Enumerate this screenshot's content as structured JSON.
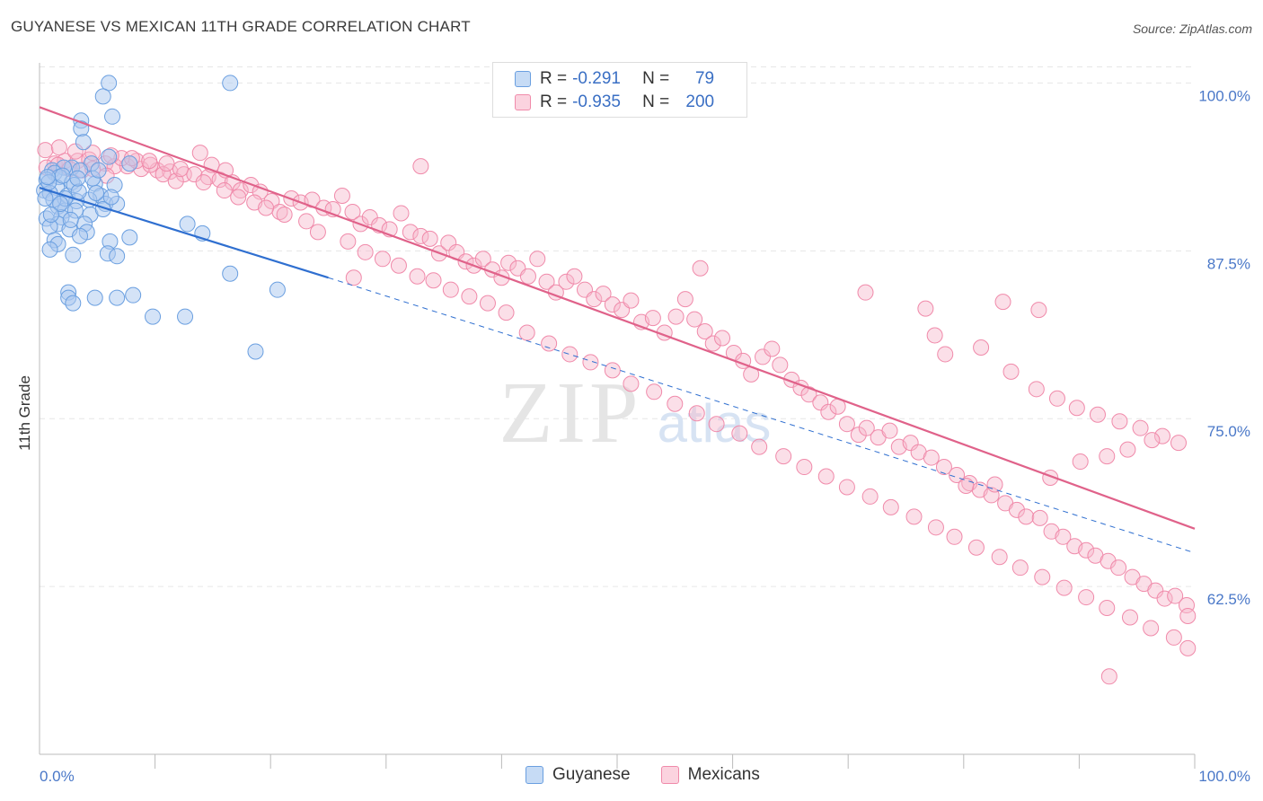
{
  "title": "GUYANESE VS MEXICAN 11TH GRADE CORRELATION CHART",
  "source": "Source: ZipAtlas.com",
  "watermark": {
    "zip": "ZIP",
    "atlas": "atlas"
  },
  "legend_top": [
    {
      "r_label": "R =",
      "r_value": "-0.291",
      "n_label": "N =",
      "n_value": "79",
      "color": "#a9c8f0"
    },
    {
      "r_label": "R =",
      "r_value": "-0.935",
      "n_label": "N =",
      "n_value": "200",
      "color": "#f7b8cb"
    }
  ],
  "legend_bottom": [
    {
      "label": "Guyanese",
      "color": "#a9c8f0"
    },
    {
      "label": "Mexicans",
      "color": "#f7b8cb"
    }
  ],
  "chart_data": {
    "type": "scatter",
    "title": "GUYANESE VS MEXICAN 11TH GRADE CORRELATION CHART",
    "xlabel": "",
    "ylabel": "11th Grade",
    "xlim": [
      0,
      100
    ],
    "ylim": [
      50,
      101.5
    ],
    "x_tick_labels": [
      "0.0%",
      "100.0%"
    ],
    "y_ticks": [
      62.5,
      75.0,
      87.5,
      100.0
    ],
    "y_tick_labels": [
      "62.5%",
      "75.0%",
      "87.5%",
      "100.0%"
    ],
    "grid": true,
    "colors": {
      "guyanese": "#6a9fe0",
      "mexicans": "#f08aaa",
      "guyanese_line": "#2f6fd0",
      "mexicans_line": "#e0628a"
    },
    "series": [
      {
        "name": "Guyanese",
        "trend": {
          "x0": 0,
          "y0": 92.2,
          "x1": 25,
          "y1": 85.5,
          "dashed_to_x": 100,
          "dashed_to_y": 65.0
        },
        "points": [
          [
            6,
            100
          ],
          [
            16.5,
            100
          ],
          [
            5.5,
            99
          ],
          [
            6.3,
            97.5
          ],
          [
            3.6,
            97.2
          ],
          [
            3.6,
            96.6
          ],
          [
            3.8,
            95.6
          ],
          [
            6,
            94.5
          ],
          [
            7.8,
            94
          ],
          [
            4.5,
            94
          ],
          [
            2.8,
            93.7
          ],
          [
            1.1,
            93.5
          ],
          [
            2.1,
            93.7
          ],
          [
            3.5,
            93.5
          ],
          [
            1.3,
            93.3
          ],
          [
            1.7,
            93
          ],
          [
            0.6,
            92.8
          ],
          [
            2.8,
            92.6
          ],
          [
            4.8,
            92.5
          ],
          [
            6.5,
            92.4
          ],
          [
            1.5,
            92.2
          ],
          [
            0.4,
            92
          ],
          [
            0.9,
            91.8
          ],
          [
            2.4,
            91.6
          ],
          [
            5.3,
            91.6
          ],
          [
            4.3,
            91.3
          ],
          [
            3.2,
            91.2
          ],
          [
            5.7,
            91
          ],
          [
            6.7,
            91
          ],
          [
            1.6,
            90.8
          ],
          [
            2.2,
            90.5
          ],
          [
            4.4,
            90.2
          ],
          [
            1.9,
            90
          ],
          [
            0.6,
            89.9
          ],
          [
            1.6,
            89.5
          ],
          [
            3.9,
            89.5
          ],
          [
            12.8,
            89.5
          ],
          [
            0.9,
            89.3
          ],
          [
            2.6,
            89.1
          ],
          [
            4.1,
            88.9
          ],
          [
            14.1,
            88.8
          ],
          [
            3.5,
            88.6
          ],
          [
            7.8,
            88.5
          ],
          [
            1.3,
            88.3
          ],
          [
            6.1,
            88.2
          ],
          [
            1.6,
            88
          ],
          [
            0.9,
            87.6
          ],
          [
            5.9,
            87.3
          ],
          [
            6.7,
            87.1
          ],
          [
            2.9,
            87.2
          ],
          [
            16.5,
            85.8
          ],
          [
            20.6,
            84.6
          ],
          [
            2.5,
            84.4
          ],
          [
            2.5,
            84
          ],
          [
            6.7,
            84
          ],
          [
            4.8,
            84
          ],
          [
            8.1,
            84.2
          ],
          [
            2.9,
            83.6
          ],
          [
            9.8,
            82.6
          ],
          [
            12.6,
            82.6
          ],
          [
            18.7,
            80
          ],
          [
            3.1,
            90.5
          ],
          [
            2.2,
            91.4
          ],
          [
            4.6,
            92.9
          ],
          [
            5.1,
            93.5
          ],
          [
            0.8,
            92.6
          ],
          [
            1.2,
            91.3
          ],
          [
            3.0,
            92.4
          ],
          [
            2.0,
            93.1
          ],
          [
            4.9,
            91.8
          ],
          [
            0.5,
            91.4
          ],
          [
            1.8,
            91.0
          ],
          [
            3.4,
            91.9
          ],
          [
            5.5,
            90.6
          ],
          [
            2.7,
            89.8
          ],
          [
            1.0,
            90.2
          ],
          [
            6.2,
            91.5
          ],
          [
            0.7,
            93.0
          ],
          [
            3.3,
            92.9
          ]
        ]
      },
      {
        "name": "Mexicans",
        "trend": {
          "x0": 0,
          "y0": 98.2,
          "x1": 100,
          "y1": 66.8
        },
        "points": [
          [
            1.3,
            94
          ],
          [
            2.2,
            94.2
          ],
          [
            3.3,
            94.2
          ],
          [
            4.3,
            94.3
          ],
          [
            5.7,
            94
          ],
          [
            6.5,
            93.8
          ],
          [
            7.6,
            93.8
          ],
          [
            8.8,
            93.6
          ],
          [
            10.2,
            93.5
          ],
          [
            11.3,
            93.4
          ],
          [
            12.5,
            93.2
          ],
          [
            13.4,
            93.2
          ],
          [
            14.6,
            93
          ],
          [
            15.6,
            92.8
          ],
          [
            16.7,
            92.6
          ],
          [
            0.6,
            93.7
          ],
          [
            1.6,
            93.9
          ],
          [
            2.6,
            93.6
          ],
          [
            3.7,
            93.5
          ],
          [
            4.6,
            93.6
          ],
          [
            5.8,
            93.1
          ],
          [
            7.1,
            94.4
          ],
          [
            8.4,
            94.2
          ],
          [
            9.6,
            93.9
          ],
          [
            10.7,
            93.2
          ],
          [
            11.8,
            92.7
          ],
          [
            13.9,
            94.8
          ],
          [
            14.9,
            93.9
          ],
          [
            16.1,
            93.5
          ],
          [
            17.4,
            92
          ],
          [
            18.3,
            92.4
          ],
          [
            19.1,
            91.9
          ],
          [
            20.1,
            91.2
          ],
          [
            20.8,
            90.4
          ],
          [
            21.8,
            91.4
          ],
          [
            22.6,
            91.1
          ],
          [
            23.6,
            91.3
          ],
          [
            24.6,
            90.7
          ],
          [
            25.4,
            90.6
          ],
          [
            26.2,
            91.6
          ],
          [
            27.1,
            90.4
          ],
          [
            27.8,
            89.5
          ],
          [
            28.6,
            90
          ],
          [
            29.4,
            89.4
          ],
          [
            30.3,
            89.1
          ],
          [
            31.3,
            90.3
          ],
          [
            32.1,
            88.9
          ],
          [
            33,
            88.6
          ],
          [
            33.8,
            88.4
          ],
          [
            34.6,
            87.3
          ],
          [
            35.4,
            88.1
          ],
          [
            36.1,
            87.4
          ],
          [
            36.9,
            86.7
          ],
          [
            37.6,
            86.4
          ],
          [
            38.4,
            86.9
          ],
          [
            39.2,
            86.1
          ],
          [
            40,
            85.5
          ],
          [
            40.6,
            86.6
          ],
          [
            41.4,
            86.2
          ],
          [
            42.3,
            85.6
          ],
          [
            43.1,
            86.9
          ],
          [
            43.9,
            85.2
          ],
          [
            44.7,
            84.4
          ],
          [
            45.6,
            85.2
          ],
          [
            46.3,
            85.6
          ],
          [
            47.2,
            84.6
          ],
          [
            48,
            83.9
          ],
          [
            48.8,
            84.3
          ],
          [
            49.6,
            83.5
          ],
          [
            50.4,
            83.1
          ],
          [
            51.2,
            83.8
          ],
          [
            52.1,
            82.2
          ],
          [
            53.1,
            82.5
          ],
          [
            54.1,
            81.4
          ],
          [
            55.1,
            82.6
          ],
          [
            55.9,
            83.9
          ],
          [
            56.7,
            82.4
          ],
          [
            57.6,
            81.5
          ],
          [
            58.3,
            80.6
          ],
          [
            59.1,
            81
          ],
          [
            60.1,
            79.9
          ],
          [
            60.9,
            79.3
          ],
          [
            61.6,
            78.3
          ],
          [
            62.6,
            79.6
          ],
          [
            63.4,
            80.2
          ],
          [
            64.1,
            79
          ],
          [
            65.1,
            77.9
          ],
          [
            65.9,
            77.3
          ],
          [
            66.6,
            76.8
          ],
          [
            67.6,
            76.2
          ],
          [
            68.3,
            75.5
          ],
          [
            69.1,
            75.9
          ],
          [
            69.9,
            74.6
          ],
          [
            70.9,
            73.8
          ],
          [
            71.6,
            74.3
          ],
          [
            72.6,
            73.6
          ],
          [
            73.6,
            74.1
          ],
          [
            74.4,
            72.9
          ],
          [
            75.4,
            73.2
          ],
          [
            76.1,
            72.5
          ],
          [
            77.2,
            72.1
          ],
          [
            78.3,
            71.4
          ],
          [
            79.4,
            70.8
          ],
          [
            80.5,
            70.2
          ],
          [
            81.4,
            69.7
          ],
          [
            82.4,
            69.3
          ],
          [
            83.6,
            68.7
          ],
          [
            84.6,
            68.2
          ],
          [
            85.4,
            67.7
          ],
          [
            86.6,
            67.6
          ],
          [
            87.6,
            66.6
          ],
          [
            88.6,
            66.2
          ],
          [
            89.6,
            65.5
          ],
          [
            90.6,
            65.2
          ],
          [
            91.4,
            64.8
          ],
          [
            92.5,
            64.4
          ],
          [
            93.4,
            63.9
          ],
          [
            94.6,
            63.2
          ],
          [
            95.6,
            62.7
          ],
          [
            96.6,
            62.2
          ],
          [
            97.4,
            61.6
          ],
          [
            98.3,
            61.8
          ],
          [
            99.3,
            61.1
          ],
          [
            0.5,
            95
          ],
          [
            1.7,
            95.2
          ],
          [
            3.1,
            94.9
          ],
          [
            4.6,
            94.8
          ],
          [
            6.2,
            94.6
          ],
          [
            8,
            94.4
          ],
          [
            9.5,
            94.2
          ],
          [
            11,
            94
          ],
          [
            12.2,
            93.6
          ],
          [
            14.2,
            92.6
          ],
          [
            16,
            92
          ],
          [
            17.2,
            91.5
          ],
          [
            18.6,
            91.1
          ],
          [
            19.6,
            90.7
          ],
          [
            21.2,
            90.2
          ],
          [
            23.1,
            89.7
          ],
          [
            24.1,
            88.9
          ],
          [
            26.7,
            88.2
          ],
          [
            28.2,
            87.4
          ],
          [
            29.7,
            86.9
          ],
          [
            31.1,
            86.4
          ],
          [
            32.7,
            85.6
          ],
          [
            34.1,
            85.3
          ],
          [
            35.6,
            84.6
          ],
          [
            37.2,
            84.1
          ],
          [
            38.8,
            83.6
          ],
          [
            40.4,
            82.9
          ],
          [
            42.2,
            81.4
          ],
          [
            44.1,
            80.6
          ],
          [
            45.9,
            79.8
          ],
          [
            47.7,
            79.2
          ],
          [
            49.6,
            78.6
          ],
          [
            51.2,
            77.6
          ],
          [
            53.2,
            77
          ],
          [
            55,
            76.1
          ],
          [
            56.9,
            75.4
          ],
          [
            58.6,
            74.6
          ],
          [
            60.6,
            73.9
          ],
          [
            62.3,
            72.9
          ],
          [
            64.4,
            72.2
          ],
          [
            66.2,
            71.4
          ],
          [
            68.1,
            70.7
          ],
          [
            69.9,
            69.9
          ],
          [
            71.9,
            69.2
          ],
          [
            73.7,
            68.4
          ],
          [
            75.7,
            67.7
          ],
          [
            77.6,
            66.9
          ],
          [
            79.2,
            66.2
          ],
          [
            81.1,
            65.4
          ],
          [
            83.1,
            64.7
          ],
          [
            84.9,
            63.9
          ],
          [
            86.8,
            63.2
          ],
          [
            88.7,
            62.4
          ],
          [
            90.6,
            61.7
          ],
          [
            92.4,
            60.9
          ],
          [
            94.4,
            60.2
          ],
          [
            96.2,
            59.4
          ],
          [
            98.2,
            58.7
          ],
          [
            99.4,
            57.9
          ],
          [
            92.6,
            55.8
          ],
          [
            99.4,
            60.3
          ],
          [
            33,
            93.8
          ],
          [
            27.2,
            85.5
          ],
          [
            57.2,
            86.2
          ],
          [
            71.5,
            84.4
          ],
          [
            76.7,
            83.2
          ],
          [
            83.4,
            83.7
          ],
          [
            86.5,
            83.1
          ],
          [
            77.5,
            81.2
          ],
          [
            78.4,
            79.8
          ],
          [
            81.5,
            80.3
          ],
          [
            84.1,
            78.5
          ],
          [
            86.3,
            77.2
          ],
          [
            88.1,
            76.5
          ],
          [
            89.8,
            75.8
          ],
          [
            91.6,
            75.3
          ],
          [
            93.5,
            74.8
          ],
          [
            95.3,
            74.3
          ],
          [
            97.2,
            73.7
          ],
          [
            98.6,
            73.2
          ],
          [
            80.2,
            70
          ],
          [
            82.7,
            70.1
          ],
          [
            87.5,
            70.6
          ],
          [
            90.1,
            71.8
          ],
          [
            92.4,
            72.2
          ],
          [
            94.2,
            72.7
          ],
          [
            96.3,
            73.4
          ]
        ]
      }
    ]
  }
}
